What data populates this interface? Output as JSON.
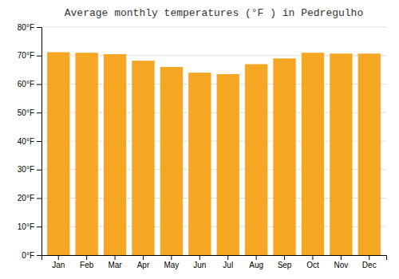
{
  "chart_data": {
    "type": "bar",
    "title": "Average monthly temperatures (°F ) in Pedregulho",
    "categories": [
      "Jan",
      "Feb",
      "Mar",
      "Apr",
      "May",
      "Jun",
      "Jul",
      "Aug",
      "Sep",
      "Oct",
      "Nov",
      "Dec"
    ],
    "values": [
      71.2,
      71.0,
      70.5,
      68.2,
      66.0,
      64.0,
      63.5,
      67.0,
      69.0,
      71.0,
      70.7,
      70.7
    ],
    "color": "#F5A623",
    "ylim": [
      0,
      80
    ],
    "yticks": [
      {
        "value": 0,
        "label": "0°F"
      },
      {
        "value": 10,
        "label": "10°F"
      },
      {
        "value": 20,
        "label": "20°F"
      },
      {
        "value": 30,
        "label": "30°F"
      },
      {
        "value": 40,
        "label": "40°F"
      },
      {
        "value": 50,
        "label": "50°F"
      },
      {
        "value": 60,
        "label": "60°F"
      },
      {
        "value": 70,
        "label": "70°F"
      },
      {
        "value": 80,
        "label": "80°F"
      }
    ],
    "grid": true
  }
}
